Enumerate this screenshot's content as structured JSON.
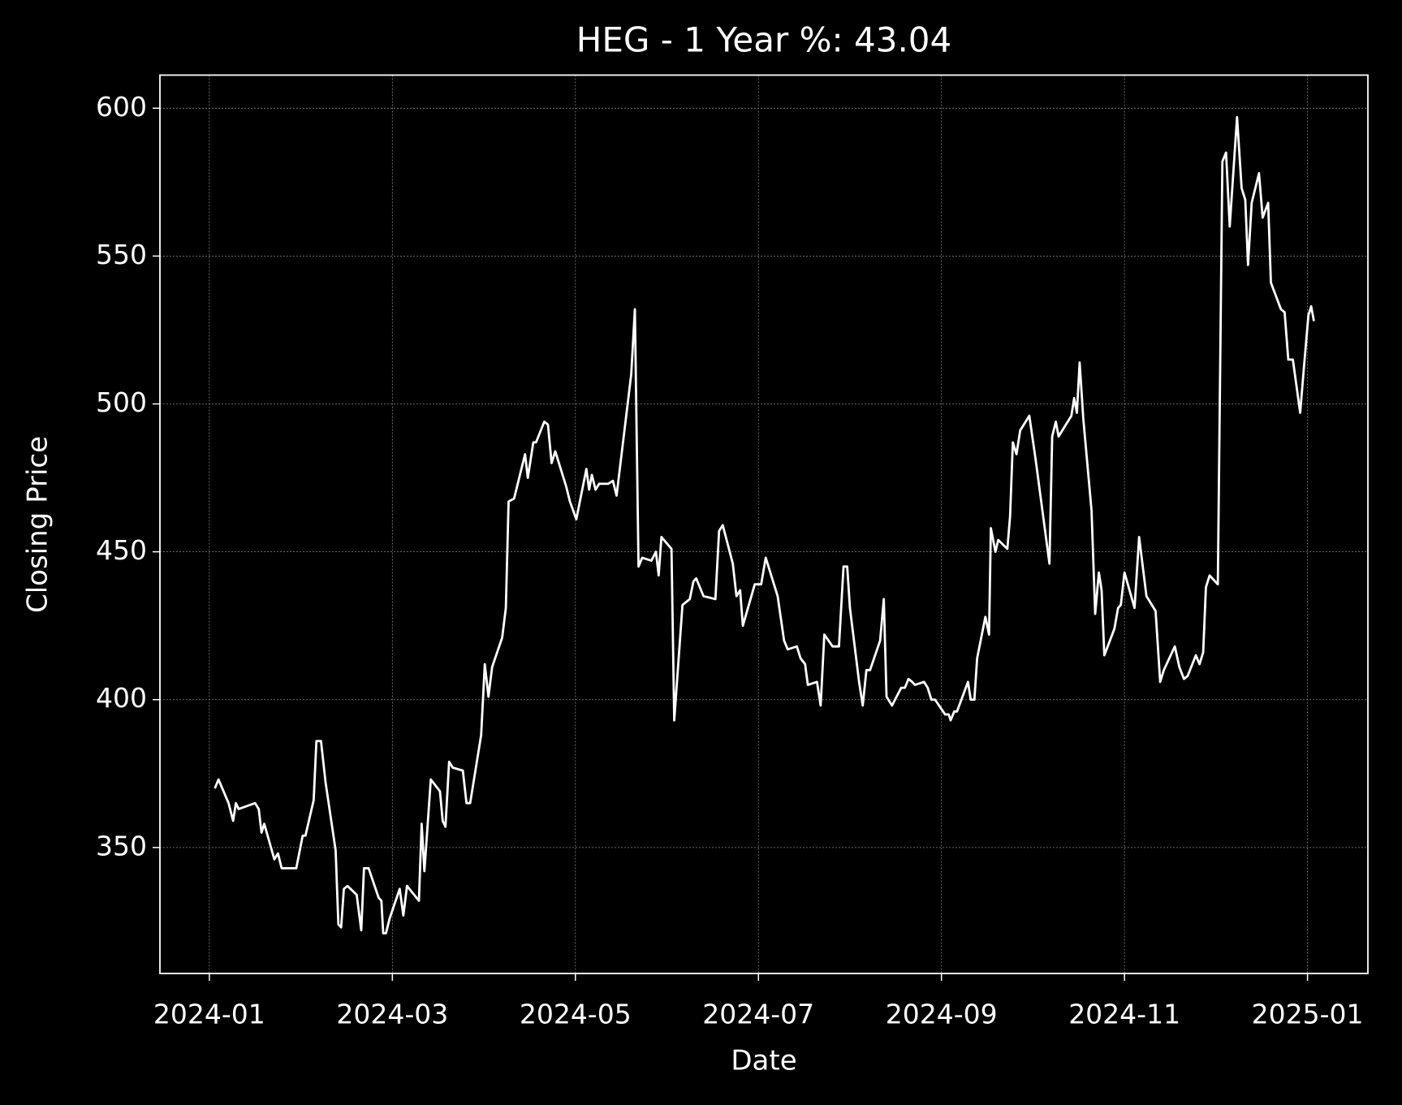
{
  "chart_data": {
    "type": "line",
    "title": "HEG - 1 Year %: 43.04",
    "x_label": "Date",
    "y_label": "Closing Price",
    "x": [
      0.06,
      0.1,
      0.21,
      0.26,
      0.29,
      0.32,
      0.5,
      0.54,
      0.57,
      0.6,
      0.71,
      0.75,
      0.79,
      0.95,
      1.02,
      1.05,
      1.14,
      1.17,
      1.22,
      1.27,
      1.38,
      1.41,
      1.44,
      1.47,
      1.51,
      1.61,
      1.66,
      1.69,
      1.74,
      1.85,
      1.88,
      1.9,
      1.93,
      1.97,
      2.08,
      2.12,
      2.16,
      2.29,
      2.32,
      2.35,
      2.42,
      2.52,
      2.55,
      2.58,
      2.62,
      2.66,
      2.77,
      2.81,
      2.85,
      2.97,
      3.01,
      3.05,
      3.09,
      3.2,
      3.24,
      3.27,
      3.33,
      3.45,
      3.48,
      3.54,
      3.57,
      3.66,
      3.7,
      3.74,
      3.78,
      3.9,
      3.94,
      4.01,
      4.12,
      4.15,
      4.18,
      4.22,
      4.26,
      4.36,
      4.41,
      4.45,
      4.61,
      4.65,
      4.69,
      4.73,
      4.83,
      4.88,
      4.91,
      4.94,
      5.05,
      5.08,
      5.17,
      5.25,
      5.29,
      5.32,
      5.4,
      5.53,
      5.57,
      5.61,
      5.72,
      5.76,
      5.8,
      5.83,
      5.96,
      6.03,
      6.08,
      6.21,
      6.28,
      6.32,
      6.42,
      6.46,
      6.51,
      6.54,
      6.64,
      6.68,
      6.72,
      6.81,
      6.88,
      6.93,
      6.97,
      7.0,
      7.1,
      7.14,
      7.18,
      7.22,
      7.33,
      7.37,
      7.4,
      7.46,
      7.56,
      7.6,
      7.64,
      7.68,
      7.71,
      7.81,
      7.85,
      7.89,
      7.93,
      8.04,
      8.08,
      8.1,
      8.14,
      8.17,
      8.29,
      8.32,
      8.36,
      8.39,
      8.48,
      8.52,
      8.54,
      8.59,
      8.62,
      8.72,
      8.75,
      8.78,
      8.82,
      8.86,
      8.96,
      9.03,
      9.18,
      9.21,
      9.25,
      9.28,
      9.32,
      9.42,
      9.45,
      9.48,
      9.51,
      9.55,
      9.64,
      9.68,
      9.72,
      9.75,
      9.78,
      9.89,
      9.93,
      9.96,
      10.0,
      10.11,
      10.16,
      10.24,
      10.34,
      10.39,
      10.43,
      10.55,
      10.6,
      10.65,
      10.69,
      10.78,
      10.82,
      10.86,
      10.89,
      10.93,
      11.02,
      11.07,
      11.11,
      11.15,
      11.23,
      11.28,
      11.32,
      11.35,
      11.39,
      11.47,
      11.51,
      11.57,
      11.6,
      11.71,
      11.75,
      11.79,
      11.84,
      11.92,
      11.96,
      12.01,
      12.04,
      12.07
    ],
    "values": [
      370,
      373,
      365,
      359,
      365,
      363,
      365,
      363,
      355,
      358,
      346,
      348,
      343,
      343,
      354,
      354,
      366,
      386,
      386,
      372,
      349,
      324,
      323,
      336,
      337,
      334,
      322,
      343,
      343,
      333,
      332,
      321,
      321,
      326,
      336,
      327,
      337,
      332,
      358,
      342,
      373,
      369,
      359,
      357,
      379,
      377,
      376,
      365,
      365,
      388,
      412,
      401,
      411,
      421,
      431,
      467,
      468,
      483,
      475,
      487,
      487,
      494,
      493,
      480,
      484,
      472,
      467,
      461,
      478,
      471,
      476,
      471,
      473,
      473,
      474,
      469,
      510,
      532,
      445,
      448,
      447,
      450,
      442,
      455,
      451,
      393,
      432,
      434,
      440,
      441,
      435,
      434,
      457,
      459,
      446,
      435,
      437,
      425,
      439,
      439,
      448,
      435,
      420,
      417,
      418,
      414,
      412,
      405,
      406,
      398,
      422,
      418,
      418,
      445,
      445,
      431,
      406,
      398,
      410,
      410,
      420,
      434,
      401,
      398,
      404,
      404,
      407,
      406,
      405,
      406,
      404,
      400,
      400,
      395,
      395,
      393,
      396,
      396,
      406,
      400,
      400,
      414,
      428,
      422,
      458,
      450,
      454,
      451,
      462,
      487,
      483,
      491,
      496,
      481,
      446,
      489,
      494,
      489,
      491,
      496,
      502,
      497,
      514,
      495,
      464,
      429,
      443,
      437,
      415,
      424,
      431,
      432,
      443,
      431,
      455,
      435,
      430,
      406,
      410,
      418,
      411,
      407,
      408,
      415,
      412,
      416,
      438,
      442,
      439,
      582,
      585,
      560,
      597,
      573,
      569,
      547,
      568,
      578,
      563,
      568,
      541,
      532,
      531,
      515,
      515,
      497,
      512,
      530,
      533,
      528
    ],
    "color": "#ffffff",
    "xlim": [
      -0.54,
      12.66
    ],
    "xticks": [
      {
        "value": 0,
        "label": "2024-01"
      },
      {
        "value": 2,
        "label": "2024-03"
      },
      {
        "value": 4,
        "label": "2024-05"
      },
      {
        "value": 6,
        "label": "2024-07"
      },
      {
        "value": 8,
        "label": "2024-09"
      },
      {
        "value": 10,
        "label": "2024-11"
      },
      {
        "value": 12,
        "label": "2025-01"
      }
    ],
    "ylim": [
      307.4,
      611.2
    ],
    "yticks": [
      350,
      400,
      450,
      500,
      550,
      600
    ],
    "grid": true
  }
}
